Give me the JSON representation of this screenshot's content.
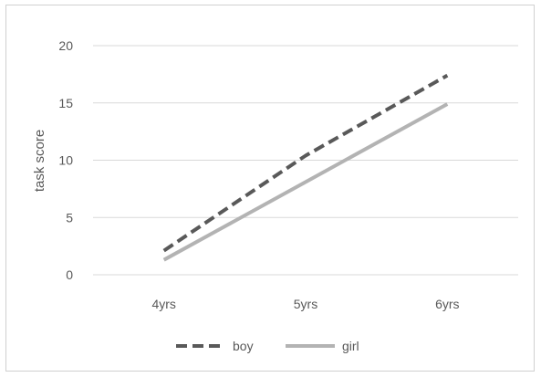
{
  "chart_data": {
    "type": "line",
    "title": "",
    "xlabel": "",
    "ylabel": "task score",
    "categories": [
      "4yrs",
      "5yrs",
      "6yrs"
    ],
    "ylim": [
      0,
      20
    ],
    "yticks": [
      0,
      5,
      10,
      15,
      20
    ],
    "grid": true,
    "legend_position": "bottom",
    "series": [
      {
        "name": "boy",
        "values": [
          2.1,
          10.4,
          17.4
        ],
        "color": "#595959",
        "dash": "dashed"
      },
      {
        "name": "girl",
        "values": [
          1.3,
          8.1,
          14.9
        ],
        "color": "#b3b3b3",
        "dash": "solid"
      }
    ]
  }
}
